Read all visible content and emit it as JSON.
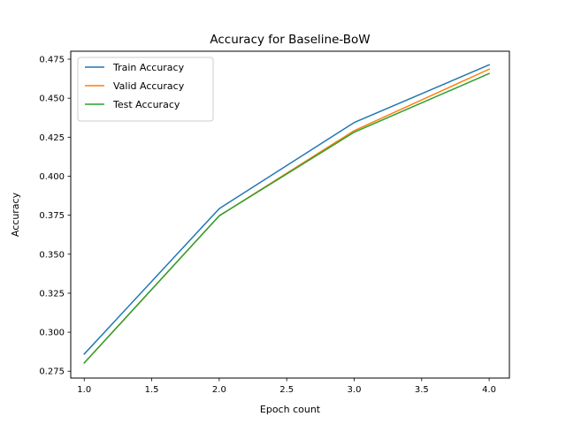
{
  "chart_data": {
    "type": "line",
    "title": "Accuracy for Baseline-BoW",
    "xlabel": "Epoch count",
    "ylabel": "Accuracy",
    "x": [
      1.0,
      2.0,
      3.0,
      4.0
    ],
    "xlim": [
      0.9,
      4.15
    ],
    "ylim": [
      0.2706,
      0.4801
    ],
    "xticks": [
      "1.0",
      "1.5",
      "2.0",
      "2.5",
      "3.0",
      "3.5",
      "4.0"
    ],
    "xtick_values": [
      1.0,
      1.5,
      2.0,
      2.5,
      3.0,
      3.5,
      4.0
    ],
    "yticks": [
      "0.275",
      "0.300",
      "0.325",
      "0.350",
      "0.375",
      "0.400",
      "0.425",
      "0.450",
      "0.475"
    ],
    "ytick_values": [
      0.275,
      0.3,
      0.325,
      0.35,
      0.375,
      0.4,
      0.425,
      0.45,
      0.475
    ],
    "grid": false,
    "legend_position": "top-left",
    "series": [
      {
        "name": "Train Accuracy",
        "color": "#1f77b4",
        "values": [
          0.286,
          0.3792,
          0.4344,
          0.4714
        ]
      },
      {
        "name": "Valid Accuracy",
        "color": "#ff7f0e",
        "values": [
          0.2803,
          0.3746,
          0.4292,
          0.4686
        ]
      },
      {
        "name": "Test Accuracy",
        "color": "#2ca02c",
        "values": [
          0.2803,
          0.3746,
          0.4282,
          0.4658
        ]
      }
    ]
  }
}
